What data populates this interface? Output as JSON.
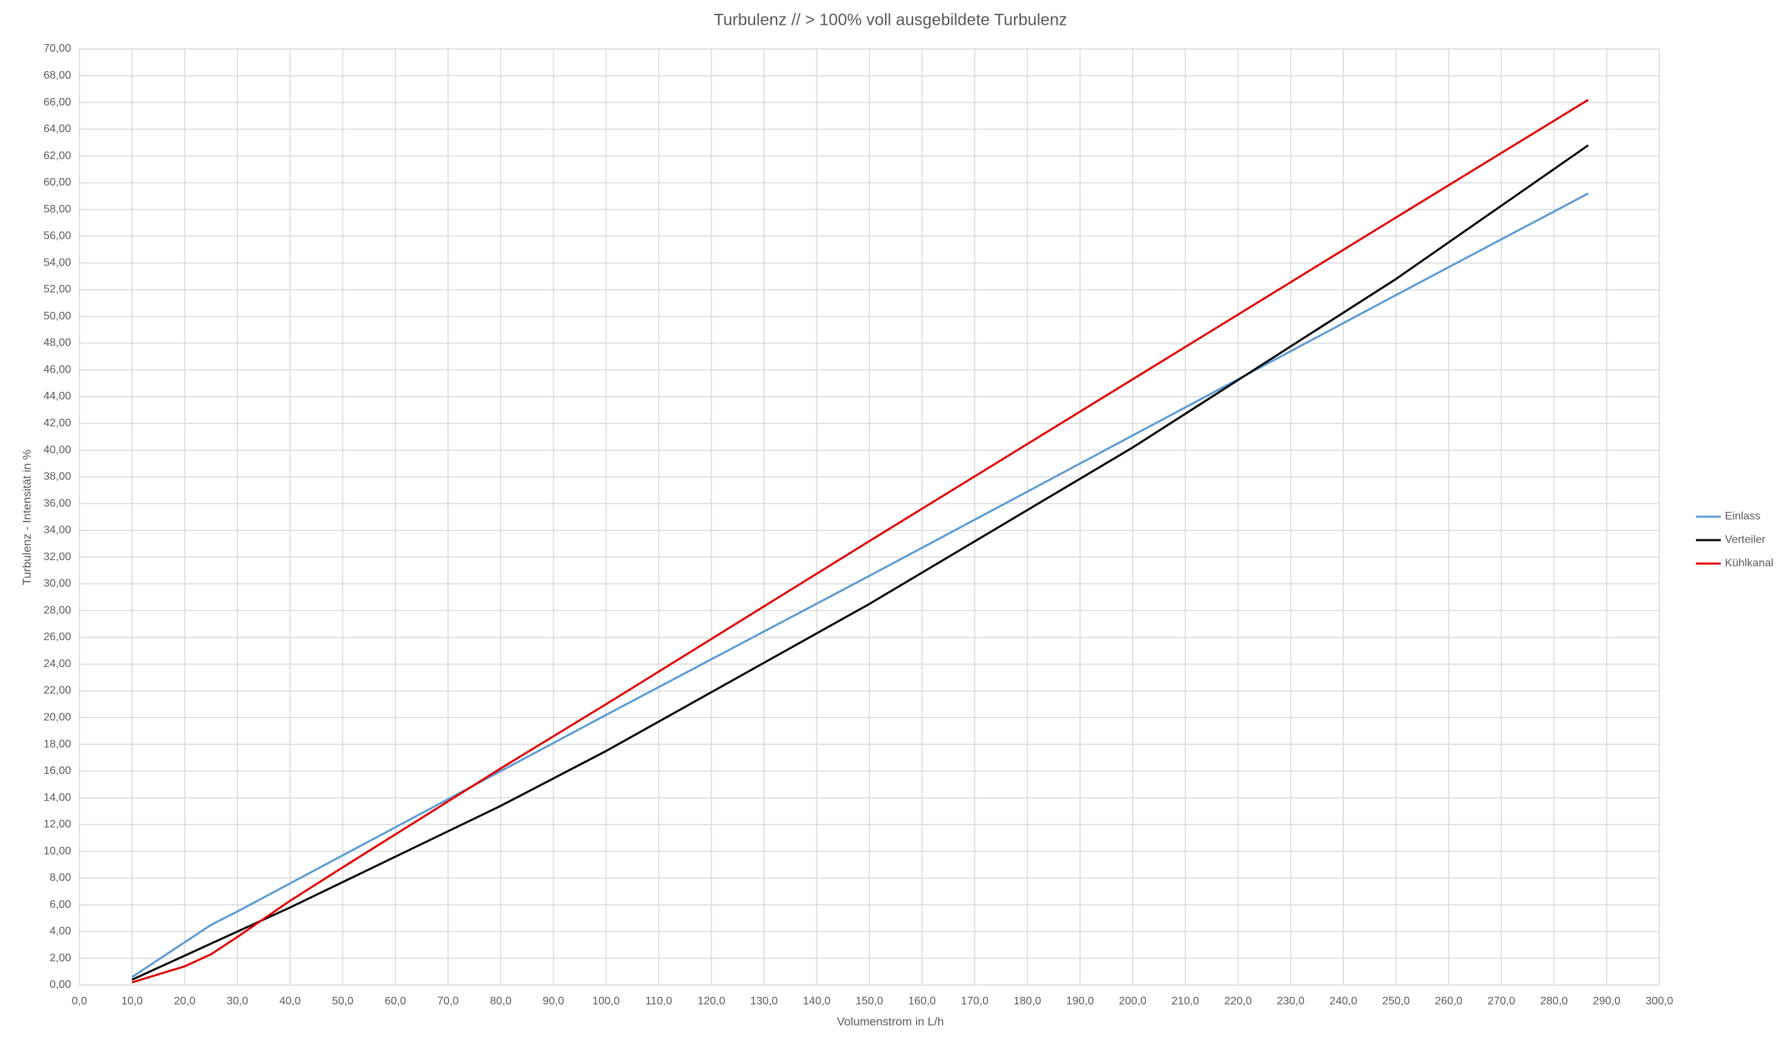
{
  "chart_data": {
    "type": "line",
    "title": "Turbulenz // > 100% voll ausgebildete Turbulenz",
    "x_label": "Volumenstrom in L/h",
    "y_label": "Turbulenz - Intensität in %",
    "x": [
      10,
      20,
      25,
      30,
      40,
      50,
      80,
      100,
      150,
      200,
      250,
      286.5
    ],
    "series": [
      {
        "name": "Einlass",
        "color": "#5b9bd5",
        "values": [
          0.6,
          3.2,
          4.5,
          5.5,
          7.6,
          9.7,
          16.0,
          20.2,
          30.6,
          41.1,
          51.6,
          59.2
        ]
      },
      {
        "name": "Verteiler",
        "color": "#000000",
        "values": [
          0.4,
          2.2,
          3.1,
          4.0,
          5.8,
          7.7,
          13.4,
          17.5,
          28.5,
          40.2,
          52.8,
          62.8
        ]
      },
      {
        "name": "Kühlkanal",
        "color": "#e00000",
        "values": [
          0.2,
          1.4,
          2.3,
          3.6,
          6.3,
          8.8,
          16.2,
          21.0,
          33.2,
          45.3,
          57.4,
          66.2
        ]
      }
    ],
    "xlim": [
      0,
      300
    ],
    "ylim": [
      0,
      70
    ],
    "xticks": [
      {
        "value": 0,
        "label": "0,0"
      },
      {
        "value": 10,
        "label": "10,0"
      },
      {
        "value": 20,
        "label": "20,0"
      },
      {
        "value": 30,
        "label": "30,0"
      },
      {
        "value": 40,
        "label": "40,0"
      },
      {
        "value": 50,
        "label": "50,0"
      },
      {
        "value": 60,
        "label": "60,0"
      },
      {
        "value": 70,
        "label": "70,0"
      },
      {
        "value": 80,
        "label": "80,0"
      },
      {
        "value": 90,
        "label": "90,0"
      },
      {
        "value": 100,
        "label": "100,0"
      },
      {
        "value": 110,
        "label": "110,0"
      },
      {
        "value": 120,
        "label": "120,0"
      },
      {
        "value": 130,
        "label": "130,0"
      },
      {
        "value": 140,
        "label": "140,0"
      },
      {
        "value": 150,
        "label": "150,0"
      },
      {
        "value": 160,
        "label": "160,0"
      },
      {
        "value": 170,
        "label": "170,0"
      },
      {
        "value": 180,
        "label": "180,0"
      },
      {
        "value": 190,
        "label": "190,0"
      },
      {
        "value": 200,
        "label": "200,0"
      },
      {
        "value": 210,
        "label": "210,0"
      },
      {
        "value": 220,
        "label": "220,0"
      },
      {
        "value": 230,
        "label": "230,0"
      },
      {
        "value": 240,
        "label": "240,0"
      },
      {
        "value": 250,
        "label": "250,0"
      },
      {
        "value": 260,
        "label": "260,0"
      },
      {
        "value": 270,
        "label": "270,0"
      },
      {
        "value": 280,
        "label": "280,0"
      },
      {
        "value": 290,
        "label": "290,0"
      },
      {
        "value": 300,
        "label": "300,0"
      }
    ],
    "yticks": [
      {
        "value": 0,
        "label": "0,00"
      },
      {
        "value": 2,
        "label": "2,00"
      },
      {
        "value": 4,
        "label": "4,00"
      },
      {
        "value": 6,
        "label": "6,00"
      },
      {
        "value": 8,
        "label": "8,00"
      },
      {
        "value": 10,
        "label": "10,00"
      },
      {
        "value": 12,
        "label": "12,00"
      },
      {
        "value": 14,
        "label": "14,00"
      },
      {
        "value": 16,
        "label": "16,00"
      },
      {
        "value": 18,
        "label": "18,00"
      },
      {
        "value": 20,
        "label": "20,00"
      },
      {
        "value": 22,
        "label": "22,00"
      },
      {
        "value": 24,
        "label": "24,00"
      },
      {
        "value": 26,
        "label": "26,00"
      },
      {
        "value": 28,
        "label": "28,00"
      },
      {
        "value": 30,
        "label": "30,00"
      },
      {
        "value": 32,
        "label": "32,00"
      },
      {
        "value": 34,
        "label": "34,00"
      },
      {
        "value": 36,
        "label": "36,00"
      },
      {
        "value": 38,
        "label": "38,00"
      },
      {
        "value": 40,
        "label": "40,00"
      },
      {
        "value": 42,
        "label": "42,00"
      },
      {
        "value": 44,
        "label": "44,00"
      },
      {
        "value": 46,
        "label": "46,00"
      },
      {
        "value": 48,
        "label": "48,00"
      },
      {
        "value": 50,
        "label": "50,00"
      },
      {
        "value": 52,
        "label": "52,00"
      },
      {
        "value": 54,
        "label": "54,00"
      },
      {
        "value": 56,
        "label": "56,00"
      },
      {
        "value": 58,
        "label": "58,00"
      },
      {
        "value": 60,
        "label": "60,00"
      },
      {
        "value": 62,
        "label": "62,00"
      },
      {
        "value": 64,
        "label": "64,00"
      },
      {
        "value": 66,
        "label": "66,00"
      },
      {
        "value": 68,
        "label": "68,00"
      },
      {
        "value": 70,
        "label": "70,00"
      }
    ],
    "grid": true,
    "legend": "right"
  }
}
